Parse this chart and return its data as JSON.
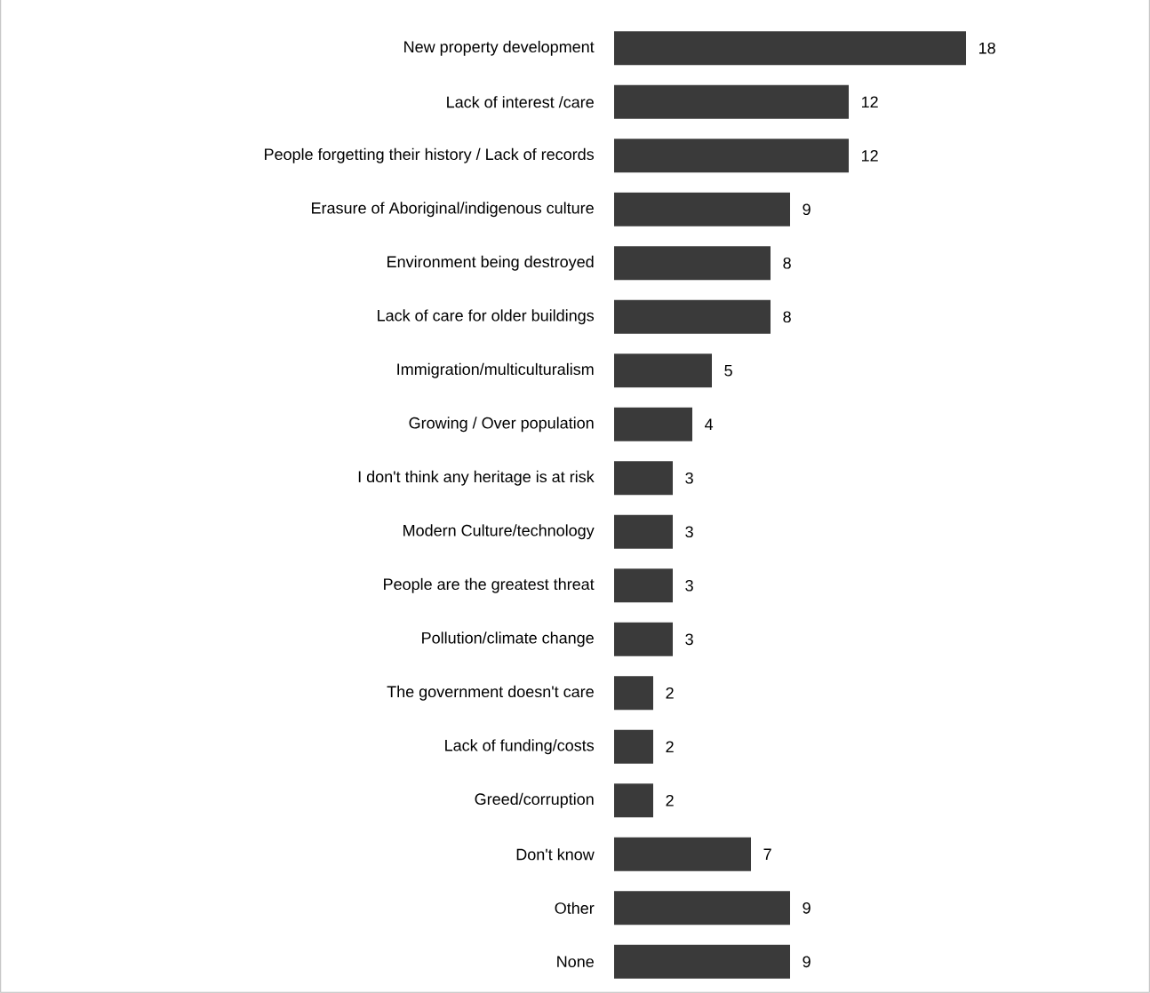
{
  "chart_data": {
    "type": "bar",
    "orientation": "horizontal",
    "data_labels": true,
    "color": "#3a3a3a",
    "categories": [
      "New property development",
      "Lack of interest /care",
      "People forgetting their history / Lack of records",
      "Erasure of Aboriginal/indigenous culture",
      "Environment being destroyed",
      "Lack of care for older buildings",
      "Immigration/multiculturalism",
      "Growing / Over population",
      "I don't think any heritage is at risk",
      "Modern Culture/technology",
      "People are the greatest threat",
      "Pollution/climate change",
      "The government doesn't care",
      "Lack of funding/costs",
      "Greed/corruption",
      "Don't know",
      "Other",
      "None"
    ],
    "values": [
      18,
      12,
      12,
      9,
      8,
      8,
      5,
      4,
      3,
      3,
      3,
      3,
      2,
      2,
      2,
      7,
      9,
      9
    ]
  }
}
